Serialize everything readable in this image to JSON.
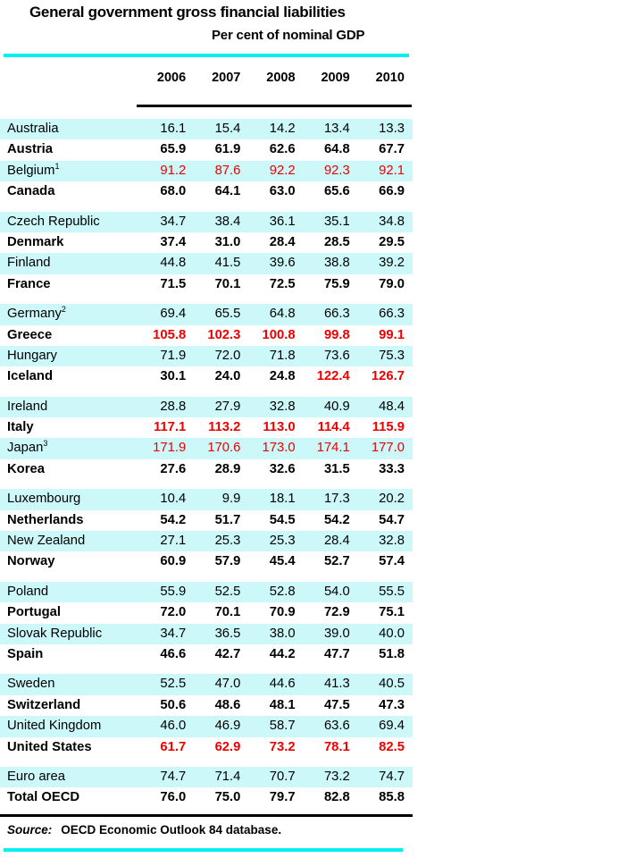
{
  "title": "General government gross financial liabilities",
  "subtitle": "Per cent of nominal GDP",
  "source": {
    "label": "Source:",
    "text": "OECD Economic Outlook 84 database."
  },
  "colors": {
    "accent_cyan": "#00F0F0",
    "row_band": "#CCF8FA",
    "highlight_red": "#EE0000",
    "text": "#000000"
  },
  "table": {
    "years": [
      "2006",
      "2007",
      "2008",
      "2009",
      "2010"
    ],
    "rows": [
      {
        "country": "Australia",
        "sup": "",
        "band": true,
        "bold": false,
        "gap_before": false,
        "values": [
          "16.1",
          "15.4",
          "14.2",
          "13.4",
          "13.3"
        ],
        "red": []
      },
      {
        "country": "Austria",
        "sup": "",
        "band": false,
        "bold": true,
        "gap_before": false,
        "values": [
          "65.9",
          "61.9",
          "62.6",
          "64.8",
          "67.7"
        ],
        "red": []
      },
      {
        "country": "Belgium",
        "sup": "1",
        "band": true,
        "bold": false,
        "gap_before": false,
        "values": [
          "91.2",
          "87.6",
          "92.2",
          "92.3",
          "92.1"
        ],
        "red": [
          true,
          true,
          true,
          true,
          true
        ]
      },
      {
        "country": "Canada",
        "sup": "",
        "band": false,
        "bold": true,
        "gap_before": false,
        "values": [
          "68.0",
          "64.1",
          "63.0",
          "65.6",
          "66.9"
        ],
        "red": []
      },
      {
        "country": "Czech Republic",
        "sup": "",
        "band": true,
        "bold": false,
        "gap_before": true,
        "values": [
          "34.7",
          "38.4",
          "36.1",
          "35.1",
          "34.8"
        ],
        "red": []
      },
      {
        "country": "Denmark",
        "sup": "",
        "band": false,
        "bold": true,
        "gap_before": false,
        "values": [
          "37.4",
          "31.0",
          "28.4",
          "28.5",
          "29.5"
        ],
        "red": []
      },
      {
        "country": "Finland",
        "sup": "",
        "band": true,
        "bold": false,
        "gap_before": false,
        "values": [
          "44.8",
          "41.5",
          "39.6",
          "38.8",
          "39.2"
        ],
        "red": []
      },
      {
        "country": "France",
        "sup": "",
        "band": false,
        "bold": true,
        "gap_before": false,
        "values": [
          "71.5",
          "70.1",
          "72.5",
          "75.9",
          "79.0"
        ],
        "red": []
      },
      {
        "country": "Germany",
        "sup": "2",
        "band": true,
        "bold": false,
        "gap_before": true,
        "values": [
          "69.4",
          "65.5",
          "64.8",
          "66.3",
          "66.3"
        ],
        "red": []
      },
      {
        "country": "Greece",
        "sup": "",
        "band": false,
        "bold": true,
        "gap_before": false,
        "values": [
          "105.8",
          "102.3",
          "100.8",
          "99.8",
          "99.1"
        ],
        "red": [
          true,
          true,
          true,
          true,
          true
        ]
      },
      {
        "country": "Hungary",
        "sup": "",
        "band": true,
        "bold": false,
        "gap_before": false,
        "values": [
          "71.9",
          "72.0",
          "71.8",
          "73.6",
          "75.3"
        ],
        "red": []
      },
      {
        "country": "Iceland",
        "sup": "",
        "band": false,
        "bold": true,
        "gap_before": false,
        "values": [
          "30.1",
          "24.0",
          "24.8",
          "122.4",
          "126.7"
        ],
        "red": [
          false,
          false,
          false,
          true,
          true
        ]
      },
      {
        "country": "Ireland",
        "sup": "",
        "band": true,
        "bold": false,
        "gap_before": true,
        "values": [
          "28.8",
          "27.9",
          "32.8",
          "40.9",
          "48.4"
        ],
        "red": []
      },
      {
        "country": "Italy",
        "sup": "",
        "band": false,
        "bold": true,
        "gap_before": false,
        "values": [
          "117.1",
          "113.2",
          "113.0",
          "114.4",
          "115.9"
        ],
        "red": [
          true,
          true,
          true,
          true,
          true
        ]
      },
      {
        "country": "Japan",
        "sup": "3",
        "band": true,
        "bold": false,
        "gap_before": false,
        "values": [
          "171.9",
          "170.6",
          "173.0",
          "174.1",
          "177.0"
        ],
        "red": [
          true,
          true,
          true,
          true,
          true
        ]
      },
      {
        "country": "Korea",
        "sup": "",
        "band": false,
        "bold": true,
        "gap_before": false,
        "values": [
          "27.6",
          "28.9",
          "32.6",
          "31.5",
          "33.3"
        ],
        "red": []
      },
      {
        "country": "Luxembourg",
        "sup": "",
        "band": true,
        "bold": false,
        "gap_before": true,
        "values": [
          "10.4",
          "9.9",
          "18.1",
          "17.3",
          "20.2"
        ],
        "red": []
      },
      {
        "country": "Netherlands",
        "sup": "",
        "band": false,
        "bold": true,
        "gap_before": false,
        "values": [
          "54.2",
          "51.7",
          "54.5",
          "54.2",
          "54.7"
        ],
        "red": []
      },
      {
        "country": "New Zealand",
        "sup": "",
        "band": true,
        "bold": false,
        "gap_before": false,
        "values": [
          "27.1",
          "25.3",
          "25.3",
          "28.4",
          "32.8"
        ],
        "red": []
      },
      {
        "country": "Norway",
        "sup": "",
        "band": false,
        "bold": true,
        "gap_before": false,
        "values": [
          "60.9",
          "57.9",
          "45.4",
          "52.7",
          "57.4"
        ],
        "red": []
      },
      {
        "country": "Poland",
        "sup": "",
        "band": true,
        "bold": false,
        "gap_before": true,
        "values": [
          "55.9",
          "52.5",
          "52.8",
          "54.0",
          "55.5"
        ],
        "red": []
      },
      {
        "country": "Portugal",
        "sup": "",
        "band": false,
        "bold": true,
        "gap_before": false,
        "values": [
          "72.0",
          "70.1",
          "70.9",
          "72.9",
          "75.1"
        ],
        "red": []
      },
      {
        "country": "Slovak Republic",
        "sup": "",
        "band": true,
        "bold": false,
        "gap_before": false,
        "values": [
          "34.7",
          "36.5",
          "38.0",
          "39.0",
          "40.0"
        ],
        "red": []
      },
      {
        "country": "Spain",
        "sup": "",
        "band": false,
        "bold": true,
        "gap_before": false,
        "values": [
          "46.6",
          "42.7",
          "44.2",
          "47.7",
          "51.8"
        ],
        "red": []
      },
      {
        "country": "Sweden",
        "sup": "",
        "band": true,
        "bold": false,
        "gap_before": true,
        "values": [
          "52.5",
          "47.0",
          "44.6",
          "41.3",
          "40.5"
        ],
        "red": []
      },
      {
        "country": "Switzerland",
        "sup": "",
        "band": false,
        "bold": true,
        "gap_before": false,
        "values": [
          "50.6",
          "48.6",
          "48.1",
          "47.5",
          "47.3"
        ],
        "red": []
      },
      {
        "country": "United Kingdom",
        "sup": "",
        "band": true,
        "bold": false,
        "gap_before": false,
        "values": [
          "46.0",
          "46.9",
          "58.7",
          "63.6",
          "69.4"
        ],
        "red": []
      },
      {
        "country": "United States",
        "sup": "",
        "band": false,
        "bold": true,
        "gap_before": false,
        "values": [
          "61.7",
          "62.9",
          "73.2",
          "78.1",
          "82.5"
        ],
        "red": [
          true,
          true,
          true,
          true,
          true
        ]
      },
      {
        "country": "Euro area",
        "sup": "",
        "band": true,
        "bold": false,
        "gap_before": true,
        "values": [
          "74.7",
          "71.4",
          "70.7",
          "73.2",
          "74.7"
        ],
        "red": []
      },
      {
        "country": "Total OECD",
        "sup": "",
        "band": false,
        "bold": true,
        "gap_before": false,
        "values": [
          "76.0",
          "75.0",
          "79.7",
          "82.8",
          "85.8"
        ],
        "red": []
      }
    ]
  }
}
